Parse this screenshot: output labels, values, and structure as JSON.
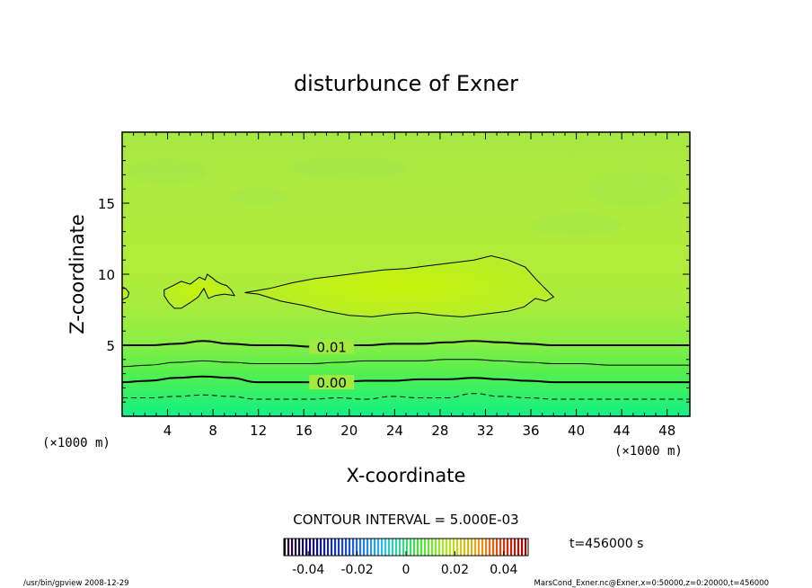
{
  "chart_data": {
    "type": "contour",
    "title": "disturbunce of Exner",
    "xlabel": "X-coordinate",
    "ylabel": "Z-coordinate",
    "x_unit_label": "(×1000 m)",
    "y_unit_label": "(×1000 m)",
    "xlim": [
      0,
      50
    ],
    "ylim": [
      0,
      20
    ],
    "x_ticks": [
      4,
      8,
      12,
      16,
      20,
      24,
      28,
      32,
      36,
      40,
      44,
      48
    ],
    "y_ticks": [
      5,
      10,
      15
    ],
    "contour_interval_text": "CONTOUR INTERVAL = 5.000E-03",
    "time_text": "t=456000 s",
    "colorbar": {
      "range": [
        -0.05,
        0.05
      ],
      "tick_labels": [
        "-0.04",
        "-0.02",
        "0",
        "0.02",
        "0.04"
      ],
      "tick_values": [
        -0.04,
        -0.02,
        0,
        0.02,
        0.04
      ]
    },
    "contours": [
      {
        "level": 0.01,
        "label": "0.01",
        "style": "thick",
        "z": [
          5.0,
          5.0,
          5.1,
          5.3,
          5.1,
          5.0,
          5.0,
          4.9,
          5.0,
          5.0,
          5.1,
          5.1,
          5.2,
          5.3,
          5.2,
          5.1,
          5.0,
          5.0,
          5.0,
          5.0,
          5.0,
          5.0
        ],
        "label_x": 16.0
      },
      {
        "level": 0.005,
        "label": "",
        "style": "thin",
        "z": [
          3.5,
          3.6,
          3.8,
          3.9,
          3.8,
          3.7,
          3.7,
          3.7,
          3.8,
          3.9,
          3.9,
          3.9,
          4.0,
          4.0,
          3.9,
          3.8,
          3.7,
          3.7,
          3.6,
          3.6,
          3.6,
          3.6
        ]
      },
      {
        "level": 0.0,
        "label": "0.00",
        "style": "thick",
        "z": [
          2.4,
          2.5,
          2.7,
          2.8,
          2.7,
          2.4,
          2.4,
          2.4,
          2.4,
          2.5,
          2.5,
          2.6,
          2.6,
          2.7,
          2.6,
          2.5,
          2.4,
          2.4,
          2.4,
          2.4,
          2.4,
          2.4
        ],
        "label_x": 16.0
      },
      {
        "level": -0.005,
        "label": "",
        "style": "dashed",
        "z": [
          1.3,
          1.3,
          1.4,
          1.5,
          1.4,
          1.2,
          1.2,
          1.2,
          1.3,
          1.2,
          1.4,
          1.3,
          1.3,
          1.6,
          1.4,
          1.3,
          1.2,
          1.2,
          1.2,
          1.2,
          1.2,
          1.2
        ]
      }
    ],
    "closed_contours": [
      {
        "level": 0.015,
        "points": [
          [
            3.7,
            8.9
          ],
          [
            4.5,
            9.2
          ],
          [
            5.2,
            9.5
          ],
          [
            6.0,
            9.3
          ],
          [
            6.8,
            9.8
          ],
          [
            7.3,
            9.6
          ],
          [
            7.5,
            10.0
          ],
          [
            8.0,
            9.7
          ],
          [
            8.3,
            9.5
          ],
          [
            8.8,
            9.3
          ],
          [
            9.2,
            9.2
          ],
          [
            9.6,
            8.9
          ],
          [
            9.9,
            8.5
          ],
          [
            9.0,
            8.6
          ],
          [
            8.2,
            8.5
          ],
          [
            7.6,
            8.3
          ],
          [
            7.2,
            9.0
          ],
          [
            6.7,
            8.4
          ],
          [
            6.0,
            8.0
          ],
          [
            5.2,
            7.6
          ],
          [
            4.6,
            7.6
          ],
          [
            4.1,
            8.0
          ],
          [
            3.7,
            8.5
          ]
        ]
      },
      {
        "level": 0.015,
        "points": [
          [
            10.8,
            8.7
          ],
          [
            11.5,
            8.8
          ],
          [
            13,
            9.0
          ],
          [
            15,
            9.4
          ],
          [
            17,
            9.7
          ],
          [
            19,
            9.9
          ],
          [
            21,
            10.1
          ],
          [
            23,
            10.3
          ],
          [
            25,
            10.4
          ],
          [
            27,
            10.6
          ],
          [
            29,
            10.8
          ],
          [
            31,
            11.0
          ],
          [
            32.5,
            11.3
          ],
          [
            34,
            11.0
          ],
          [
            35.5,
            10.5
          ],
          [
            36.5,
            9.6
          ],
          [
            37.5,
            8.8
          ],
          [
            38.0,
            8.4
          ],
          [
            37.3,
            8.1
          ],
          [
            36.4,
            8.3
          ],
          [
            35.4,
            7.7
          ],
          [
            34,
            7.4
          ],
          [
            32,
            7.2
          ],
          [
            30,
            7.0
          ],
          [
            28,
            7.1
          ],
          [
            26,
            7.3
          ],
          [
            24,
            7.2
          ],
          [
            22,
            7.0
          ],
          [
            20,
            7.1
          ],
          [
            18,
            7.4
          ],
          [
            16,
            7.8
          ],
          [
            14,
            8.1
          ],
          [
            12,
            8.6
          ]
        ]
      },
      {
        "level": 0.015,
        "points": [
          [
            0,
            8.2
          ],
          [
            0.5,
            8.4
          ],
          [
            0.6,
            8.7
          ],
          [
            0.3,
            9.0
          ],
          [
            0,
            9.1
          ]
        ]
      }
    ],
    "footer_left": "/usr/bin/gpview   2008-12-29",
    "footer_right": "MarsCond_Exner.nc@Exner,x=0:50000,z=0:20000,t=456000"
  }
}
